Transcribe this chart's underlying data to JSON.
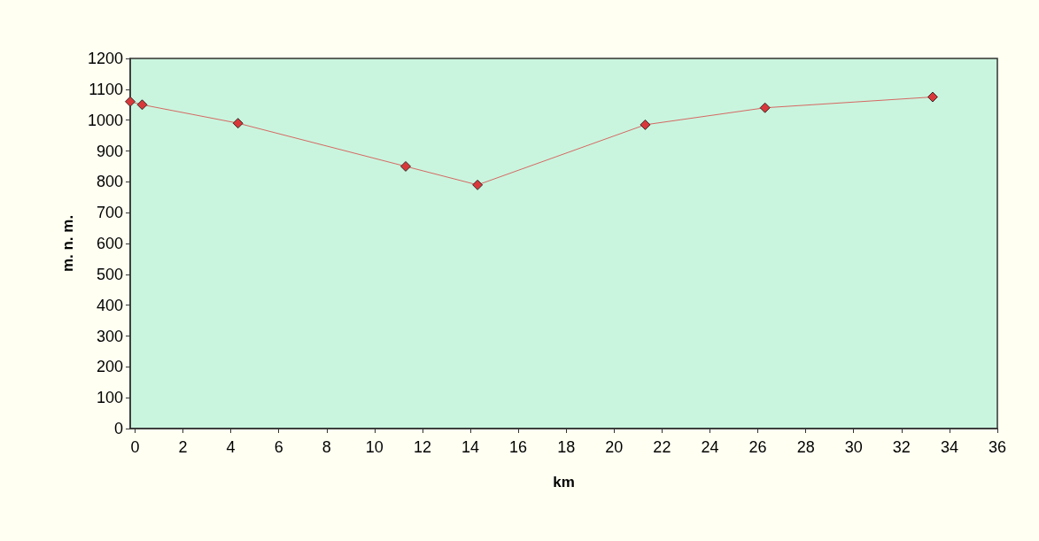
{
  "chart_data": {
    "type": "line",
    "xlabel": "km",
    "ylabel": "m. n. m.",
    "x": [
      -0.2,
      0.3,
      4.3,
      11.3,
      14.3,
      21.3,
      26.3,
      33.3
    ],
    "series": [
      {
        "color": "#d9383a",
        "values": [
          1060,
          1050,
          990,
          850,
          790,
          985,
          1040,
          1075
        ]
      }
    ],
    "xlim": [
      -0.2,
      36
    ],
    "xticks": [
      0,
      2,
      4,
      6,
      8,
      10,
      12,
      14,
      16,
      18,
      20,
      22,
      24,
      26,
      28,
      30,
      32,
      34,
      36
    ],
    "ylim": [
      0,
      1200
    ],
    "yticks": [
      0,
      100,
      200,
      300,
      400,
      500,
      600,
      700,
      800,
      900,
      1000,
      1100,
      1200
    ],
    "grid": false,
    "marker": "diamond",
    "line_style": "solid"
  }
}
